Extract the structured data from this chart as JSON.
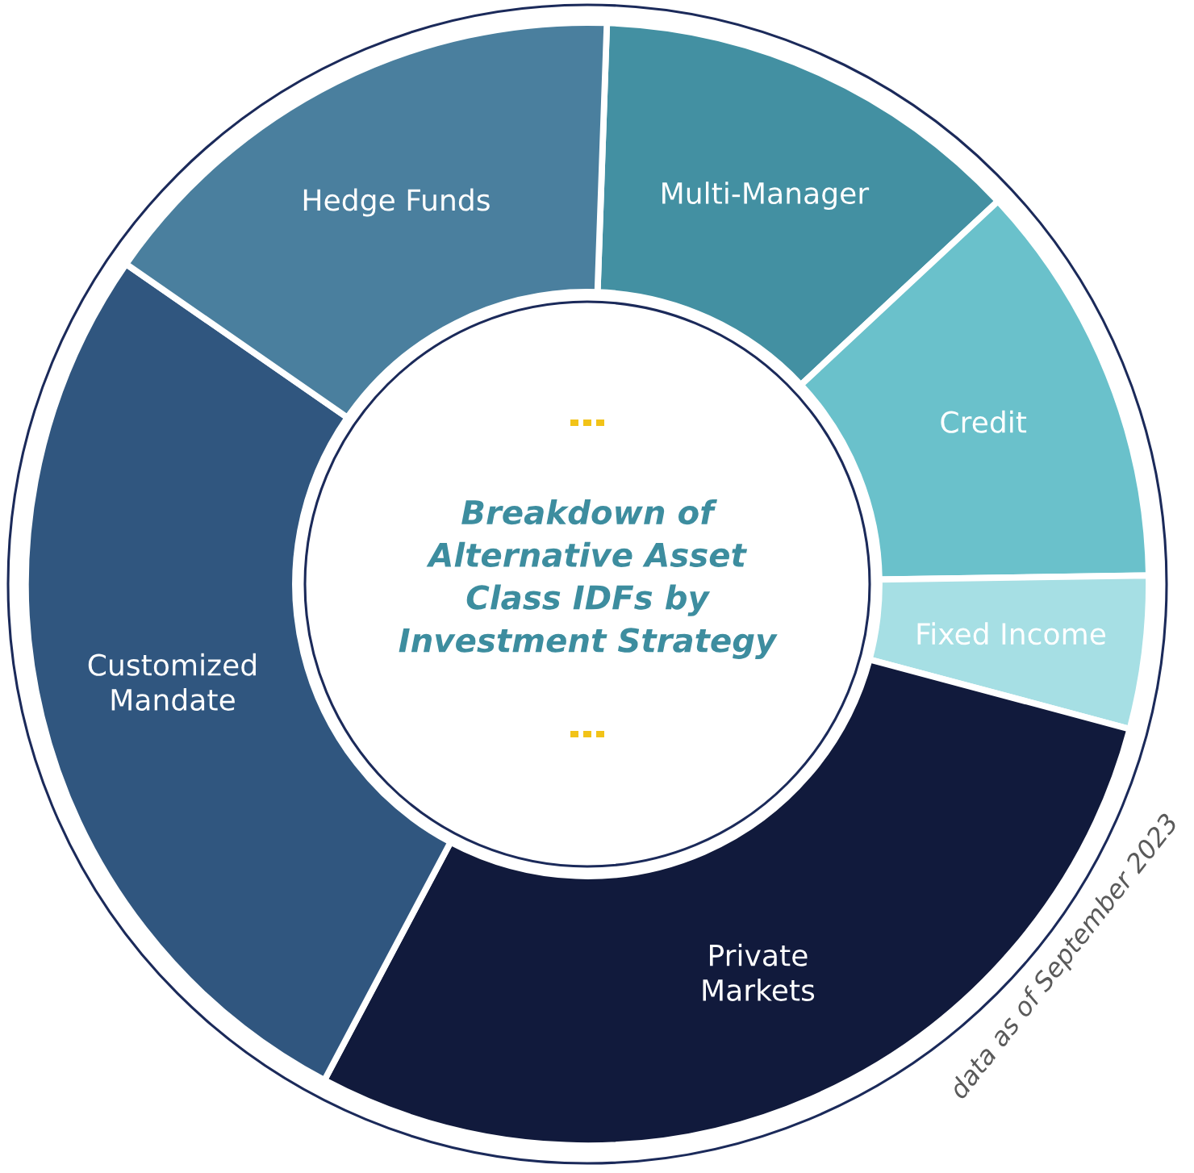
{
  "chart_data": {
    "type": "donut",
    "title": "Breakdown of\nAlternative Asset\nClass IDFs by\nInvestment Strategy",
    "categories": [
      "Multi-Manager",
      "Credit",
      "Fixed Income",
      "Private\nMarkets",
      "Customized\nMandate",
      "Hedge Funds"
    ],
    "values": [
      12.5,
      11.7,
      4.4,
      28.6,
      26.9,
      15.9
    ],
    "colors": [
      "#4390a2",
      "#6ac1cb",
      "#a6dfe4",
      "#111a3c",
      "#30567f",
      "#4a7f9e"
    ],
    "annotations": [
      "data as of September 2023"
    ]
  }
}
